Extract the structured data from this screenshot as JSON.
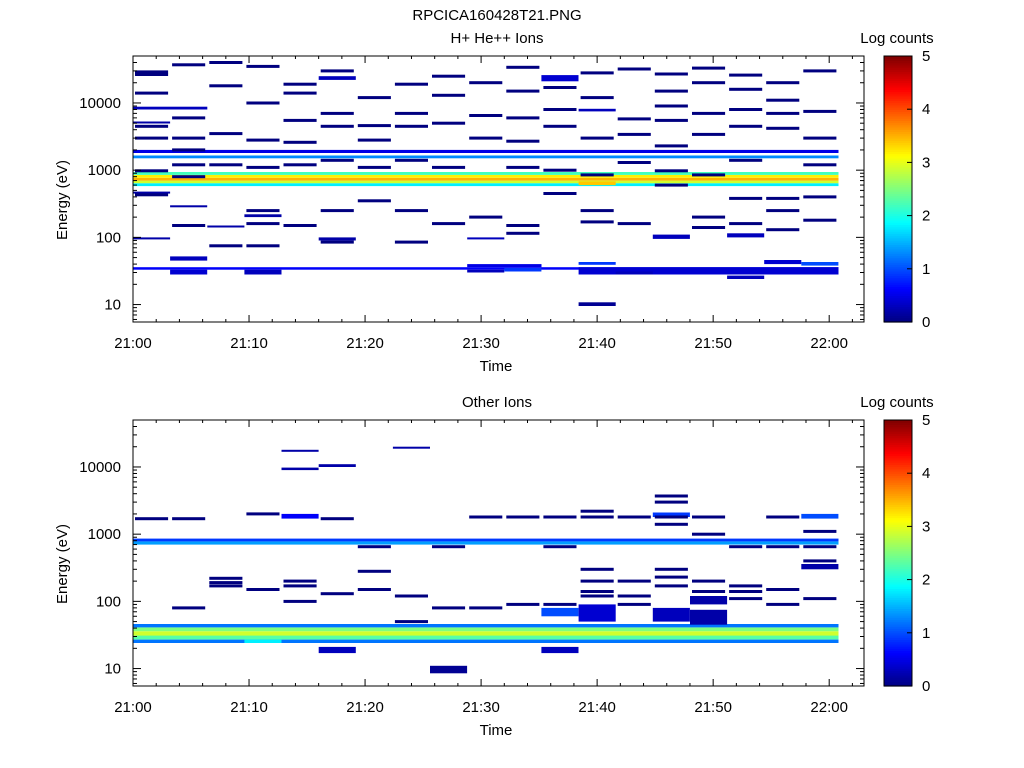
{
  "figure_title": "RPCICA160428T21.PNG",
  "colorbar_colors": [
    "#00007f",
    "#0000ff",
    "#007fff",
    "#00ffff",
    "#7fff7f",
    "#ffff00",
    "#ff7f00",
    "#ff0000",
    "#7f0000"
  ],
  "chart_data": [
    {
      "type": "heatmap",
      "title": "H+ He++ Ions",
      "xlabel": "Time",
      "ylabel": "Energy (eV)",
      "x_tick_labels": [
        "21:00",
        "21:10",
        "21:20",
        "21:30",
        "21:40",
        "21:50",
        "22:00"
      ],
      "y_tick_labels": [
        "10",
        "100",
        "1000",
        "10000"
      ],
      "y_scale": "log",
      "ylim": [
        5.5,
        50000
      ],
      "xlim_minutes": [
        0,
        63
      ],
      "colorbar": {
        "label": "Log counts",
        "ticks": [
          "0",
          "1",
          "2",
          "3",
          "4",
          "5"
        ],
        "range": [
          0,
          5
        ]
      },
      "columns_minutes": [
        0,
        3.2,
        6.4,
        9.6,
        12.8,
        16,
        19.2,
        22.4,
        25.6,
        28.8,
        32,
        35.2,
        38.4,
        41.6,
        44.8,
        48,
        51.2,
        54.4,
        57.6
      ],
      "cells": [
        {
          "c": [
            0,
            19
          ],
          "e": [
            580,
            640
          ],
          "v": 1.8
        },
        {
          "c": [
            0,
            19
          ],
          "e": [
            640,
            700
          ],
          "v": 2.9
        },
        {
          "c": [
            0,
            19
          ],
          "e": [
            700,
            770
          ],
          "v": 3.5
        },
        {
          "c": [
            0,
            19
          ],
          "e": [
            770,
            850
          ],
          "v": 3.2
        },
        {
          "c": [
            0,
            19
          ],
          "e": [
            850,
            940
          ],
          "v": 2.2
        },
        {
          "c": [
            0,
            19
          ],
          "e": [
            1500,
            1650
          ],
          "v": 1.3
        },
        {
          "c": [
            0,
            19
          ],
          "e": [
            1800,
            2000
          ],
          "v": 0.5
        },
        {
          "c": [
            0,
            19
          ],
          "e": [
            33,
            36
          ],
          "v": 0.6
        },
        {
          "c": [
            0,
            2
          ],
          "e": [
            8000,
            8800
          ],
          "v": 0.3
        },
        {
          "c": [
            0,
            1
          ],
          "e": [
            5000,
            5300
          ],
          "v": 0.2
        },
        {
          "c": [
            0,
            1
          ],
          "e": [
            95,
            100
          ],
          "v": 0.2
        },
        {
          "c": [
            0,
            1
          ],
          "e": [
            450,
            480
          ],
          "v": 0.2
        },
        {
          "c": [
            1,
            2
          ],
          "e": [
            28,
            33
          ],
          "v": 0.4
        },
        {
          "c": [
            1,
            2
          ],
          "e": [
            45,
            52
          ],
          "v": 0.3
        },
        {
          "c": [
            1,
            2
          ],
          "e": [
            280,
            300
          ],
          "v": 0.2
        },
        {
          "c": [
            2,
            3
          ],
          "e": [
            140,
            150
          ],
          "v": 0.2
        },
        {
          "c": [
            3,
            4
          ],
          "e": [
            28,
            33
          ],
          "v": 0.3
        },
        {
          "c": [
            3,
            4
          ],
          "e": [
            200,
            220
          ],
          "v": 0.2
        },
        {
          "c": [
            5,
            6
          ],
          "e": [
            22000,
            25000
          ],
          "v": 0.3
        },
        {
          "c": [
            5,
            6
          ],
          "e": [
            90,
            100
          ],
          "v": 0.2
        },
        {
          "c": [
            9,
            10
          ],
          "e": [
            30,
            33
          ],
          "v": 0.3
        },
        {
          "c": [
            9,
            10
          ],
          "e": [
            95,
            100
          ],
          "v": 0.3
        },
        {
          "c": [
            9,
            11
          ],
          "e": [
            36,
            40
          ],
          "v": 0.5
        },
        {
          "c": [
            10,
            11
          ],
          "e": [
            31,
            35
          ],
          "v": 0.9
        },
        {
          "c": [
            11,
            12
          ],
          "e": [
            21000,
            26000
          ],
          "v": 0.4
        },
        {
          "c": [
            12,
            13
          ],
          "e": [
            39,
            43
          ],
          "v": 0.9
        },
        {
          "c": [
            12,
            13
          ],
          "e": [
            9.5,
            10.8
          ],
          "v": 0.1
        },
        {
          "c": [
            12,
            19
          ],
          "e": [
            28,
            36
          ],
          "v": 0.4
        },
        {
          "c": [
            12,
            13
          ],
          "e": [
            7500,
            8200
          ],
          "v": 0.3
        },
        {
          "c": [
            12,
            13
          ],
          "e": [
            600,
            680
          ],
          "v": 3.4
        },
        {
          "c": [
            13,
            14
          ],
          "e": [
            28,
            31
          ],
          "v": 0.3
        },
        {
          "c": [
            14,
            15
          ],
          "e": [
            95,
            110
          ],
          "v": 0.3
        },
        {
          "c": [
            16,
            17
          ],
          "e": [
            24,
            27
          ],
          "v": 0.3
        },
        {
          "c": [
            16,
            17
          ],
          "e": [
            100,
            115
          ],
          "v": 0.3
        },
        {
          "c": [
            17,
            18
          ],
          "e": [
            40,
            46
          ],
          "v": 0.4
        },
        {
          "c": [
            18,
            19
          ],
          "e": [
            38,
            43
          ],
          "v": 1.0
        }
      ],
      "lines_note": "",
      "lines": [
        {
          "c": 0,
          "e": [
            29000,
            26500,
            14000,
            4500,
            3000,
            980,
            430
          ]
        },
        {
          "c": 1,
          "e": [
            37000,
            6000,
            3000,
            2000,
            1200,
            800,
            150
          ]
        },
        {
          "c": 2,
          "e": [
            40000,
            18000,
            3500,
            1200,
            75
          ]
        },
        {
          "c": 3,
          "e": [
            35000,
            10000,
            2800,
            1100,
            250,
            160,
            75
          ]
        },
        {
          "c": 4,
          "e": [
            19000,
            14000,
            5500,
            2600,
            1200,
            150
          ]
        },
        {
          "c": 5,
          "e": [
            30000,
            7000,
            4500,
            1400,
            250,
            85
          ]
        },
        {
          "c": 6,
          "e": [
            12000,
            4600,
            2800,
            1100,
            350
          ]
        },
        {
          "c": 7,
          "e": [
            19000,
            7000,
            4500,
            1400,
            250,
            85
          ]
        },
        {
          "c": 8,
          "e": [
            25000,
            13000,
            5000,
            1100,
            160
          ]
        },
        {
          "c": 9,
          "e": [
            20000,
            6500,
            3000,
            200
          ]
        },
        {
          "c": 10,
          "e": [
            34000,
            15000,
            6000,
            2700,
            1100,
            150,
            115
          ]
        },
        {
          "c": 11,
          "e": [
            17000,
            8000,
            4500,
            1000,
            450
          ]
        },
        {
          "c": 12,
          "e": [
            28000,
            12000,
            3000,
            850,
            250,
            170
          ]
        },
        {
          "c": 13,
          "e": [
            32000,
            5800,
            3400,
            1300,
            160
          ]
        },
        {
          "c": 14,
          "e": [
            27000,
            15000,
            9000,
            5500,
            2300,
            980,
            600
          ]
        },
        {
          "c": 15,
          "e": [
            33000,
            20000,
            7000,
            3400,
            850,
            200,
            140
          ]
        },
        {
          "c": 16,
          "e": [
            26000,
            16000,
            8000,
            4500,
            1400,
            380,
            160
          ]
        },
        {
          "c": 17,
          "e": [
            20000,
            11000,
            7000,
            4200,
            380,
            250,
            130
          ]
        },
        {
          "c": 18,
          "e": [
            30000,
            7500,
            3000,
            1200,
            400,
            180
          ]
        }
      ]
    },
    {
      "type": "heatmap",
      "title": "Other Ions",
      "xlabel": "Time",
      "ylabel": "Energy (eV)",
      "x_tick_labels": [
        "21:00",
        "21:10",
        "21:20",
        "21:30",
        "21:40",
        "21:50",
        "22:00"
      ],
      "y_tick_labels": [
        "10",
        "100",
        "1000",
        "10000"
      ],
      "y_scale": "log",
      "ylim": [
        5.5,
        50000
      ],
      "xlim_minutes": [
        0,
        63
      ],
      "colorbar": {
        "label": "Log counts",
        "ticks": [
          "0",
          "1",
          "2",
          "3",
          "4",
          "5"
        ],
        "range": [
          0,
          5
        ]
      },
      "columns_minutes": [
        0,
        3.2,
        6.4,
        9.6,
        12.8,
        16,
        19.2,
        22.4,
        25.6,
        28.8,
        32,
        35.2,
        38.4,
        41.6,
        44.8,
        48,
        51.2,
        54.4,
        57.6
      ],
      "cells": [
        {
          "c": [
            0,
            19
          ],
          "e": [
            24,
            27
          ],
          "v": 1.2
        },
        {
          "c": [
            0,
            19
          ],
          "e": [
            27,
            31
          ],
          "v": 2.3
        },
        {
          "c": [
            0,
            19
          ],
          "e": [
            31,
            36
          ],
          "v": 2.9
        },
        {
          "c": [
            0,
            19
          ],
          "e": [
            36,
            41
          ],
          "v": 2.5
        },
        {
          "c": [
            0,
            19
          ],
          "e": [
            41,
            46
          ],
          "v": 1.2
        },
        {
          "c": [
            0,
            19
          ],
          "e": [
            700,
            780
          ],
          "v": 1.4
        },
        {
          "c": [
            0,
            19
          ],
          "e": [
            780,
            860
          ],
          "v": 0.9
        },
        {
          "c": [
            3,
            4
          ],
          "e": [
            24,
            27
          ],
          "v": 1.8
        },
        {
          "c": [
            8,
            9
          ],
          "e": [
            8.5,
            11
          ],
          "v": 0.1
        },
        {
          "c": [
            4,
            5
          ],
          "e": [
            17000,
            18000
          ],
          "v": 0.2
        },
        {
          "c": [
            4,
            5
          ],
          "e": [
            9000,
            9800
          ],
          "v": 0.2
        },
        {
          "c": [
            5,
            6
          ],
          "e": [
            10000,
            11000
          ],
          "v": 0.2
        },
        {
          "c": [
            7,
            8
          ],
          "e": [
            19000,
            20000
          ],
          "v": 0.2
        },
        {
          "c": [
            5,
            6
          ],
          "e": [
            17,
            21
          ],
          "v": 0.3
        },
        {
          "c": [
            11,
            12
          ],
          "e": [
            17,
            21
          ],
          "v": 0.3
        },
        {
          "c": [
            11,
            12
          ],
          "e": [
            60,
            80
          ],
          "v": 1.0
        },
        {
          "c": [
            12,
            13
          ],
          "e": [
            50,
            90
          ],
          "v": 0.4
        },
        {
          "c": [
            14,
            15
          ],
          "e": [
            50,
            80
          ],
          "v": 0.3
        },
        {
          "c": [
            15,
            16
          ],
          "e": [
            45,
            75
          ],
          "v": 0.2
        },
        {
          "c": [
            15,
            16
          ],
          "e": [
            90,
            120
          ],
          "v": 0.2
        },
        {
          "c": [
            18,
            19
          ],
          "e": [
            300,
            360
          ],
          "v": 0.2
        },
        {
          "c": [
            18,
            19
          ],
          "e": [
            1700,
            2000
          ],
          "v": 1.0
        },
        {
          "c": [
            14,
            15
          ],
          "e": [
            1800,
            2100
          ],
          "v": 0.9
        },
        {
          "c": [
            4,
            5
          ],
          "e": [
            1700,
            2000
          ],
          "v": 0.6
        }
      ],
      "lines": [
        {
          "c": 0,
          "e": [
            1700
          ]
        },
        {
          "c": 1,
          "e": [
            1700,
            80
          ]
        },
        {
          "c": 2,
          "e": [
            220,
            190,
            170
          ]
        },
        {
          "c": 3,
          "e": [
            2000,
            150
          ]
        },
        {
          "c": 4,
          "e": [
            200,
            170,
            100
          ]
        },
        {
          "c": 5,
          "e": [
            1700,
            130
          ]
        },
        {
          "c": 6,
          "e": [
            650,
            280,
            150
          ]
        },
        {
          "c": 7,
          "e": [
            120,
            50
          ]
        },
        {
          "c": 8,
          "e": [
            650,
            80
          ]
        },
        {
          "c": 9,
          "e": [
            1800,
            80
          ]
        },
        {
          "c": 10,
          "e": [
            1800,
            90
          ]
        },
        {
          "c": 11,
          "e": [
            1800,
            650,
            90
          ]
        },
        {
          "c": 12,
          "e": [
            2200,
            1800,
            300,
            200,
            140,
            120
          ]
        },
        {
          "c": 13,
          "e": [
            1800,
            200,
            120,
            90
          ]
        },
        {
          "c": 14,
          "e": [
            3700,
            3000,
            1800,
            1400,
            300,
            230,
            170
          ]
        },
        {
          "c": 15,
          "e": [
            1800,
            1000,
            200,
            140
          ]
        },
        {
          "c": 16,
          "e": [
            650,
            170,
            140,
            110
          ]
        },
        {
          "c": 17,
          "e": [
            1800,
            650,
            150,
            90
          ]
        },
        {
          "c": 18,
          "e": [
            1100,
            650,
            400,
            110
          ]
        }
      ]
    }
  ]
}
